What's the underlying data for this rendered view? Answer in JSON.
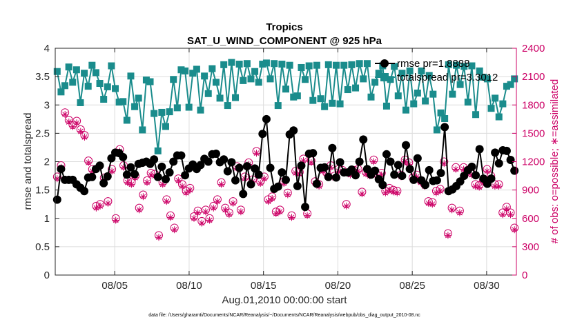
{
  "chart_data": {
    "type": "line",
    "title": "Tropics",
    "subtitle": "SAT_U_WIND_COMPONENT @ 925 hPa",
    "xlabel": "Aug.01,2010 00:00:00 start",
    "ylabel_left": "rmse and totalspread",
    "ylabel_right": "# of obs: o=possible; ∗=assimilated",
    "footnote": "data file: /Users/gharamti/Documents/NCAR/Reanalysis/~/Documents/NCAR/Reanalysis/webpub/obs_diag_output_2010-08.nc",
    "xlim": [
      1,
      32
    ],
    "ylim_left": [
      0,
      4
    ],
    "ylim_right": [
      0,
      2400
    ],
    "xticks": [
      5,
      10,
      15,
      20,
      25,
      30
    ],
    "xtick_labels": [
      "08/05",
      "08/10",
      "08/15",
      "08/20",
      "08/25",
      "08/30"
    ],
    "yticks_left": [
      0,
      0.5,
      1,
      1.5,
      2,
      2.5,
      3,
      3.5,
      4
    ],
    "ytick_left_labels": [
      "0",
      "0.5",
      "1",
      "1.5",
      "2",
      "2.5",
      "3",
      "3.5",
      "4"
    ],
    "yticks_right": [
      0,
      300,
      600,
      900,
      1200,
      1500,
      1800,
      2100,
      2400
    ],
    "ytick_right_labels": [
      "0",
      "300",
      "600",
      "900",
      "1200",
      "1500",
      "1800",
      "2100",
      "2400"
    ],
    "colors": {
      "rmse": "#000000",
      "totalspread": "#1a8c8c",
      "obs": "#cc0066"
    },
    "series": [
      {
        "name": "rmse pr=1.8888",
        "axis": "left",
        "values": [
          1.33,
          1.87,
          1.68,
          1.68,
          1.68,
          1.6,
          1.54,
          1.48,
          1.72,
          1.73,
          1.87,
          1.93,
          1.62,
          1.74,
          2.06,
          2.16,
          2.15,
          2.08,
          1.77,
          1.9,
          1.78,
          1.96,
          1.98,
          2.0,
          1.96,
          2.04,
          1.73,
          1.91,
          1.69,
          1.81,
          2.0,
          2.11,
          2.11,
          1.76,
          1.88,
          1.95,
          1.87,
          1.94,
          2.05,
          2.0,
          2.13,
          2.14,
          1.99,
          2.04,
          1.83,
          1.99,
          1.67,
          1.89,
          1.43,
          1.92,
          1.6,
          1.88,
          1.77,
          2.49,
          2.75,
          1.89,
          1.52,
          1.56,
          1.81,
          1.68,
          2.48,
          2.55,
          1.57,
          1.93,
          1.2,
          2.14,
          2.15,
          1.61,
          1.89,
          1.9,
          1.73,
          2.24,
          1.72,
          1.99,
          1.81,
          1.81,
          1.86,
          1.76,
          2.0,
          2.39,
          1.87,
          1.77,
          1.84,
          1.69,
          1.59,
          2.13,
          2.0,
          1.77,
          1.94,
          1.75,
          2.29,
          1.87,
          1.68,
          2.06,
          1.67,
          1.59,
          1.85,
          1.66,
          1.67,
          1.8,
          2.61,
          1.48,
          1.51,
          1.57,
          1.65,
          1.75,
          1.85,
          1.91,
          1.76,
          2.22,
          1.7,
          1.61,
          1.7,
          2.16,
          1.97,
          2.2,
          2.19,
          2.03,
          1.84
        ]
      },
      {
        "name": "totalspread pr=3.3012",
        "axis": "left",
        "values": [
          3.59,
          3.23,
          3.34,
          3.67,
          3.4,
          3.62,
          3.04,
          3.56,
          3.33,
          3.7,
          3.57,
          3.38,
          3.1,
          3.32,
          3.69,
          3.29,
          3.05,
          3.06,
          2.73,
          3.51,
          2.97,
          3.12,
          2.56,
          3.44,
          3.41,
          2.85,
          2.19,
          2.87,
          2.62,
          2.88,
          3.45,
          2.95,
          3.62,
          3.6,
          2.96,
          3.56,
          3.63,
          2.91,
          3.51,
          3.2,
          3.64,
          3.4,
          3.12,
          3.71,
          2.99,
          3.75,
          3.13,
          3.72,
          3.43,
          3.73,
          3.46,
          3.59,
          3.4,
          3.72,
          3.74,
          3.46,
          3.73,
          2.99,
          3.72,
          3.28,
          3.7,
          3.14,
          3.16,
          3.66,
          3.45,
          3.69,
          3.08,
          3.7,
          3.11,
          2.97,
          3.71,
          3.03,
          3.7,
          3.02,
          3.7,
          3.27,
          3.71,
          3.3,
          3.73,
          3.46,
          3.73,
          3.14,
          3.4,
          3.56,
          3.69,
          2.98,
          3.45,
          3.68,
          3.16,
          3.56,
          2.91,
          3.6,
          3.02,
          3.21,
          3.6,
          3.07,
          3.52,
          3.19,
          2.56,
          2.86,
          2.76,
          3.71,
          3.19,
          3.7,
          3.36,
          3.68,
          3.05,
          3.69,
          2.83,
          3.6,
          3.49,
          3.46,
          2.94,
          3.12,
          2.79,
          3.02,
          3.33,
          3.36,
          3.46
        ]
      },
      {
        "name": "possible",
        "axis": "right",
        "marker": "circle",
        "values": [
          1040,
          1160,
          1720,
          1640,
          1590,
          1630,
          1540,
          1480,
          1210,
          1120,
          730,
          750,
          1030,
          780,
          1120,
          600,
          1330,
          1160,
          1000,
          980,
          1050,
          710,
          850,
          1000,
          1080,
          1070,
          420,
          980,
          800,
          630,
          500,
          1020,
          960,
          890,
          920,
          620,
          680,
          570,
          690,
          600,
          730,
          800,
          980,
          710,
          660,
          780,
          1150,
          690,
          1040,
          1190,
          1010,
          1310,
          990,
          1040,
          800,
          830,
          670,
          690,
          990,
          870,
          630,
          1100,
          1090,
          1230,
          650,
          1210,
          990,
          960,
          1120,
          1080,
          1160,
          1050,
          1120,
          1110,
          750,
          1080,
          1110,
          1120,
          880,
          1090,
          1070,
          1220,
          1060,
          1080,
          890,
          920,
          900,
          890,
          1060,
          1220,
          1190,
          1030,
          1060,
          1000,
          960,
          780,
          770,
          890,
          910,
          1200,
          440,
          710,
          1140,
          680,
          1140,
          1110,
          1080,
          960,
          950,
          1000,
          1120,
          1050,
          960,
          960,
          660,
          720,
          660,
          500
        ]
      },
      {
        "name": "assimilated",
        "axis": "right",
        "marker": "star",
        "values": [
          1020,
          1140,
          1700,
          1620,
          1570,
          1610,
          1520,
          1460,
          1190,
          1100,
          710,
          730,
          1010,
          760,
          1100,
          580,
          1310,
          1140,
          980,
          960,
          1030,
          690,
          830,
          980,
          1060,
          1050,
          400,
          960,
          780,
          610,
          480,
          1000,
          940,
          870,
          900,
          600,
          660,
          550,
          670,
          580,
          710,
          780,
          960,
          690,
          640,
          760,
          1130,
          670,
          1020,
          1170,
          990,
          1290,
          970,
          1020,
          780,
          810,
          650,
          670,
          970,
          850,
          610,
          1080,
          1070,
          1210,
          630,
          1190,
          970,
          940,
          1100,
          1060,
          1140,
          1030,
          1100,
          1090,
          730,
          1060,
          1090,
          1100,
          860,
          1070,
          1050,
          1200,
          1040,
          1060,
          870,
          900,
          880,
          870,
          1040,
          1200,
          1170,
          1010,
          1040,
          980,
          940,
          760,
          750,
          870,
          890,
          1180,
          420,
          690,
          1120,
          660,
          1120,
          1090,
          1060,
          940,
          930,
          980,
          1100,
          1030,
          940,
          940,
          640,
          700,
          640,
          480
        ]
      }
    ]
  }
}
